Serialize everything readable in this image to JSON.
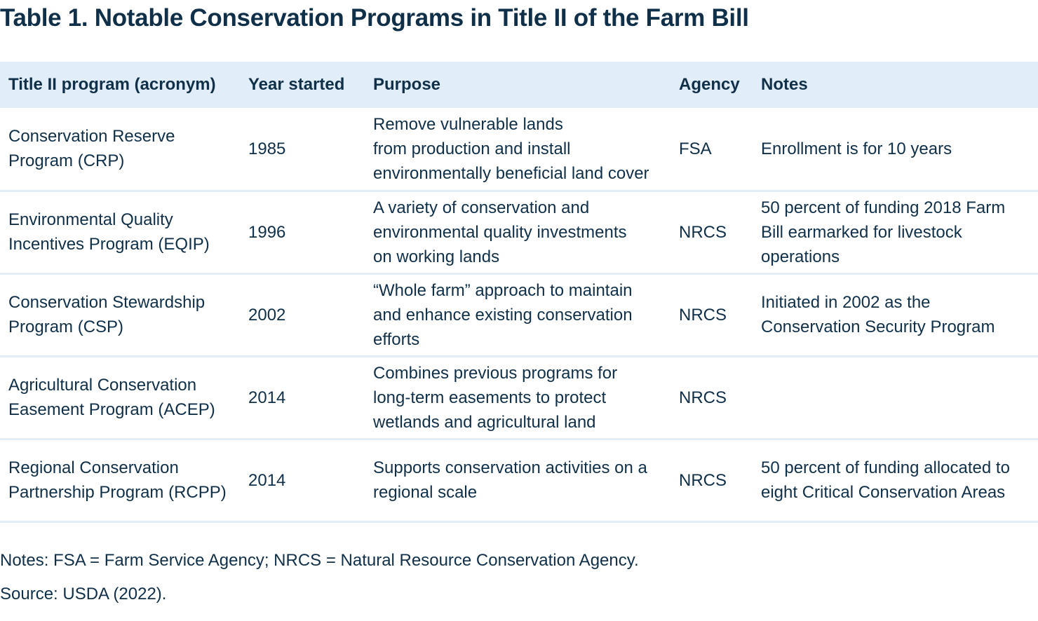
{
  "title": "Table 1.  Notable Conservation Programs in Title II of the Farm Bill",
  "table": {
    "headers": [
      "Title II program (acronym)",
      "Year started",
      "Purpose",
      "Agency",
      "Notes"
    ],
    "rows": [
      {
        "program": "Conservation Reserve\nProgram (CRP)",
        "year": "1985",
        "purpose": "Remove vulnerable lands\nfrom production and install\nenvironmentally beneficial land cover",
        "agency": "FSA",
        "notes": "Enrollment is for 10 years"
      },
      {
        "program": "Environmental Quality\nIncentives Program (EQIP)",
        "year": "1996",
        "purpose": "A variety of conservation and\nenvironmental quality investments\non working lands",
        "agency": "NRCS",
        "notes": "50 percent of funding 2018 Farm\nBill earmarked for livestock\noperations"
      },
      {
        "program": "Conservation Stewardship\nProgram (CSP)",
        "year": "2002",
        "purpose": "“Whole farm” approach to maintain\nand enhance existing conservation\nefforts",
        "agency": "NRCS",
        "notes": "Initiated in 2002 as the\nConservation Security Program"
      },
      {
        "program": "Agricultural Conservation\nEasement Program (ACEP)",
        "year": "2014",
        "purpose": "Combines previous programs for\nlong-term easements to protect\nwetlands and agricultural land",
        "agency": "NRCS",
        "notes": ""
      },
      {
        "program": "Regional Conservation\nPartnership Program (RCPP)",
        "year": "2014",
        "purpose": "Supports conservation activities on a\nregional scale",
        "agency": "NRCS",
        "notes": "50 percent of funding allocated to\neight Critical Conservation Areas"
      }
    ]
  },
  "footnote": "Notes: FSA = Farm Service Agency; NRCS = Natural Resource Conservation Agency.",
  "source": "Source: USDA (2022).",
  "colors": {
    "header_background": "#e1edf8",
    "row_divider": "#e3edf6",
    "text": "#10304a"
  }
}
